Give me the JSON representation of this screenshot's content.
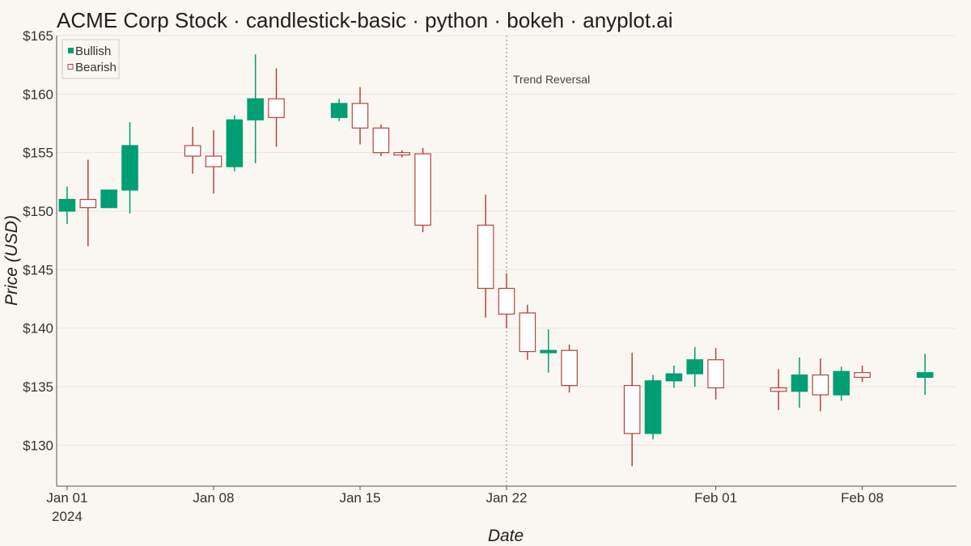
{
  "chart_data": {
    "type": "candlestick",
    "title": "ACME Corp Stock · candlestick-basic · python · bokeh · anyplot.ai",
    "xlabel": "Date",
    "ylabel": "Price (USD)",
    "ylim": [
      126.5,
      165
    ],
    "x_range": [
      "2023-12-31T12:00",
      "2024-02-12T12:00"
    ],
    "y_ticks": [
      130,
      135,
      140,
      145,
      150,
      155,
      160,
      165
    ],
    "y_tick_labels": [
      "$130",
      "$135",
      "$140",
      "$145",
      "$150",
      "$155",
      "$160",
      "$165"
    ],
    "x_ticks": [
      {
        "date": "2024-01-01",
        "label": "Jan 01",
        "sublabel": "2024"
      },
      {
        "date": "2024-01-08",
        "label": "Jan 08",
        "sublabel": ""
      },
      {
        "date": "2024-01-15",
        "label": "Jan 15",
        "sublabel": ""
      },
      {
        "date": "2024-01-22",
        "label": "Jan 22",
        "sublabel": ""
      },
      {
        "date": "2024-02-01",
        "label": "Feb 01",
        "sublabel": ""
      },
      {
        "date": "2024-02-08",
        "label": "Feb 08",
        "sublabel": ""
      }
    ],
    "grid": true,
    "legend": {
      "position": "top-left",
      "items": [
        {
          "name": "Bullish",
          "color": "#009E73",
          "filled": true
        },
        {
          "name": "Bearish",
          "color": "#B5443E",
          "filled": false
        }
      ]
    },
    "colors": {
      "bullish": "#009E73",
      "bearish": "#B5443E",
      "bearish_fill": "#FFFFFF"
    },
    "annotations": [
      {
        "date": "2024-01-22",
        "text": "Trend Reversal"
      }
    ],
    "candles": [
      {
        "date": "2024-01-01",
        "open": 150.0,
        "high": 152.1,
        "low": 148.9,
        "close": 151.0
      },
      {
        "date": "2024-01-02",
        "open": 151.0,
        "high": 154.4,
        "low": 147.0,
        "close": 150.3
      },
      {
        "date": "2024-01-03",
        "open": 150.3,
        "high": 151.8,
        "low": 150.3,
        "close": 151.8
      },
      {
        "date": "2024-01-04",
        "open": 151.8,
        "high": 157.6,
        "low": 149.8,
        "close": 155.6
      },
      {
        "date": "2024-01-07",
        "open": 155.6,
        "high": 157.2,
        "low": 153.2,
        "close": 154.7
      },
      {
        "date": "2024-01-08",
        "open": 154.7,
        "high": 156.9,
        "low": 151.5,
        "close": 153.8
      },
      {
        "date": "2024-01-09",
        "open": 153.8,
        "high": 158.2,
        "low": 153.4,
        "close": 157.8
      },
      {
        "date": "2024-01-10",
        "open": 157.8,
        "high": 163.4,
        "low": 154.1,
        "close": 159.6
      },
      {
        "date": "2024-01-11",
        "open": 159.6,
        "high": 162.2,
        "low": 155.5,
        "close": 158.0
      },
      {
        "date": "2024-01-14",
        "open": 158.0,
        "high": 159.6,
        "low": 157.7,
        "close": 159.2
      },
      {
        "date": "2024-01-15",
        "open": 159.2,
        "high": 160.6,
        "low": 155.7,
        "close": 157.1
      },
      {
        "date": "2024-01-16",
        "open": 157.1,
        "high": 157.4,
        "low": 154.7,
        "close": 155.0
      },
      {
        "date": "2024-01-17",
        "open": 155.0,
        "high": 155.2,
        "low": 154.6,
        "close": 154.8
      },
      {
        "date": "2024-01-18",
        "open": 154.9,
        "high": 155.4,
        "low": 148.2,
        "close": 148.8
      },
      {
        "date": "2024-01-21",
        "open": 148.8,
        "high": 151.4,
        "low": 140.9,
        "close": 143.4
      },
      {
        "date": "2024-01-22",
        "open": 143.4,
        "high": 144.7,
        "low": 140.0,
        "close": 141.2
      },
      {
        "date": "2024-01-23",
        "open": 141.3,
        "high": 142.0,
        "low": 137.3,
        "close": 138.0
      },
      {
        "date": "2024-01-24",
        "open": 137.9,
        "high": 139.9,
        "low": 136.2,
        "close": 138.1
      },
      {
        "date": "2024-01-25",
        "open": 138.1,
        "high": 138.6,
        "low": 134.5,
        "close": 135.1
      },
      {
        "date": "2024-01-28",
        "open": 135.1,
        "high": 137.9,
        "low": 128.2,
        "close": 131.0
      },
      {
        "date": "2024-01-29",
        "open": 131.0,
        "high": 136.0,
        "low": 130.5,
        "close": 135.5
      },
      {
        "date": "2024-01-30",
        "open": 135.5,
        "high": 136.8,
        "low": 134.9,
        "close": 136.1
      },
      {
        "date": "2024-01-31",
        "open": 136.1,
        "high": 138.4,
        "low": 135.0,
        "close": 137.3
      },
      {
        "date": "2024-02-01",
        "open": 137.3,
        "high": 138.3,
        "low": 133.9,
        "close": 134.9
      },
      {
        "date": "2024-02-04",
        "open": 134.9,
        "high": 136.5,
        "low": 133.0,
        "close": 134.6
      },
      {
        "date": "2024-02-05",
        "open": 134.6,
        "high": 137.5,
        "low": 133.2,
        "close": 136.0
      },
      {
        "date": "2024-02-06",
        "open": 136.0,
        "high": 137.4,
        "low": 132.9,
        "close": 134.3
      },
      {
        "date": "2024-02-07",
        "open": 134.3,
        "high": 136.7,
        "low": 133.8,
        "close": 136.3
      },
      {
        "date": "2024-02-08",
        "open": 136.2,
        "high": 136.8,
        "low": 135.4,
        "close": 135.8
      },
      {
        "date": "2024-02-11",
        "open": 135.8,
        "high": 137.8,
        "low": 134.3,
        "close": 136.2
      }
    ]
  }
}
